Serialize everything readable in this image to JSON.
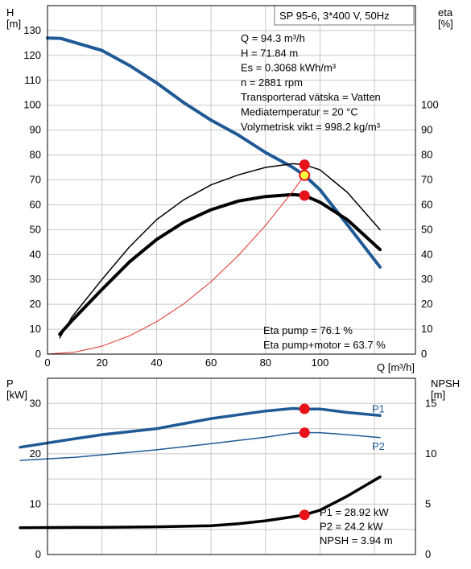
{
  "chart_data": [
    {
      "type": "line",
      "title": "SP 95-6, 3*400 V, 50Hz",
      "xlabel": "Q [m³/h]",
      "ylabel": "H\n[m]",
      "y2label": "eta\n[%]",
      "xlim": [
        0,
        135
      ],
      "ylim": [
        0,
        140
      ],
      "y2lim": [
        0,
        140
      ],
      "xticks": [
        "0",
        "20",
        "40",
        "60",
        "80",
        "100"
      ],
      "yticks": [
        "0",
        "10",
        "20",
        "30",
        "40",
        "50",
        "60",
        "70",
        "80",
        "90",
        "100",
        "110",
        "120",
        "130"
      ],
      "y2ticks": [
        "0",
        "10",
        "20",
        "30",
        "40",
        "50",
        "60",
        "70",
        "80",
        "90",
        "100"
      ],
      "grid": true,
      "info": [
        "Q = 94.3 m³/h",
        "H = 71.84 m",
        "Es = 0.3068 kWh/m³",
        "n = 2881 rpm",
        "Transporterad vätska = Vatten",
        "Mediatemperatur = 20 °C",
        "Volymetrisk vikt = 998.2 kg/m³"
      ],
      "info_bottom": [
        "Eta pump = 76.1 %",
        "Eta pump+motor = 63.7 %"
      ],
      "series": [
        {
          "id": "H",
          "color": "#1f5a96",
          "x": [
            0,
            5,
            9,
            20,
            30,
            40,
            50,
            60,
            70,
            80,
            90,
            94.3,
            100,
            110,
            122
          ],
          "y": [
            127,
            126.8,
            125.5,
            122,
            116,
            109,
            101,
            94,
            88,
            81,
            75,
            71.8,
            66,
            52,
            35
          ]
        },
        {
          "id": "eta_pump",
          "color": "#000000",
          "x": [
            4.5,
            9,
            20,
            30,
            40,
            50,
            60,
            70,
            80,
            90,
            94.3,
            100,
            110,
            122
          ],
          "y": [
            6.5,
            15,
            30,
            43,
            54,
            62,
            68,
            72,
            75,
            76.5,
            76.1,
            74,
            65,
            50
          ]
        },
        {
          "id": "eta_pump_motor",
          "color": "#000000",
          "x": [
            4.5,
            9,
            20,
            30,
            40,
            50,
            60,
            70,
            80,
            90,
            94.3,
            100,
            110,
            122
          ],
          "y": [
            8,
            13.5,
            26,
            37,
            46,
            53,
            58,
            61.5,
            63.3,
            64.1,
            63.7,
            61,
            54,
            42
          ]
        },
        {
          "id": "system_curve",
          "color": "#e0302a",
          "x": [
            0,
            10,
            20,
            30,
            40,
            50,
            60,
            70,
            80,
            90,
            94.3
          ],
          "y": [
            0,
            0.8,
            3.2,
            7.3,
            13,
            20.2,
            29.1,
            39.6,
            51.7,
            65.4,
            71.8
          ]
        }
      ],
      "markers": [
        {
          "x": 94.3,
          "y": 76.1,
          "fill": "#e8121a"
        },
        {
          "x": 94.3,
          "y": 63.7,
          "fill": "#e8121a"
        },
        {
          "x": 94.3,
          "y": 71.84,
          "fill": "#ffff40",
          "stroke": "#e8121a"
        }
      ]
    },
    {
      "type": "line",
      "xlim": [
        0,
        135
      ],
      "ylabel": "P\n[kW]",
      "y2label": "NPSH\n[m]",
      "ylim": [
        0,
        35
      ],
      "y2lim": [
        0,
        17.5
      ],
      "yticks": [
        "0",
        "10",
        "20",
        "30"
      ],
      "y2ticks": [
        "0",
        "5",
        "10",
        "15"
      ],
      "grid": true,
      "info": [
        "P1 = 28.92 kW",
        "P2 = 24.2 kW",
        "NPSH = 3.94 m"
      ],
      "series": [
        {
          "name": "P1",
          "color": "#1f5a96",
          "axis": "left",
          "x": [
            -10,
            10,
            20,
            40,
            60,
            80,
            90,
            94.3,
            100,
            110,
            122
          ],
          "y": [
            21.3,
            23,
            23.8,
            25,
            27,
            28.5,
            29,
            28.9,
            28.9,
            28.2,
            27.6
          ]
        },
        {
          "name": "P2",
          "color": "#1f5a96",
          "axis": "left",
          "x": [
            -10,
            10,
            20,
            40,
            60,
            80,
            90,
            94.3,
            100,
            110,
            122
          ],
          "y": [
            18.7,
            19.3,
            19.8,
            20.8,
            22,
            23.3,
            24.1,
            24.2,
            24.2,
            23.8,
            23.2
          ]
        },
        {
          "id": "NPSH",
          "color": "#000000",
          "axis": "right",
          "x": [
            -10,
            10,
            20,
            40,
            60,
            70,
            80,
            90,
            94.3,
            100,
            110,
            122
          ],
          "y": [
            2.65,
            2.7,
            2.7,
            2.75,
            2.85,
            3.05,
            3.35,
            3.75,
            3.94,
            4.4,
            5.8,
            7.7
          ]
        }
      ],
      "markers": [
        {
          "x": 94.3,
          "y": 28.92,
          "axis": "left",
          "fill": "#e8121a"
        },
        {
          "x": 94.3,
          "y": 24.2,
          "axis": "left",
          "fill": "#e8121a"
        },
        {
          "x": 94.3,
          "y": 3.94,
          "axis": "right",
          "fill": "#e8121a"
        }
      ]
    }
  ]
}
